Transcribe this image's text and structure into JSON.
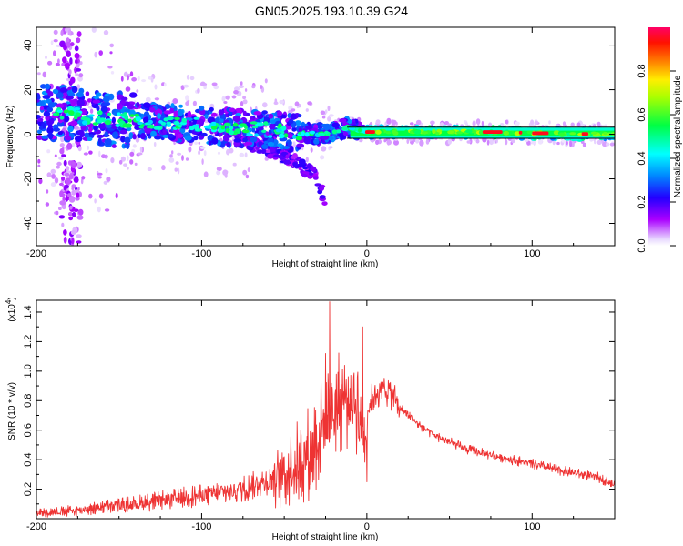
{
  "figure_title": "GN05.2025.193.10.39.G24",
  "colorbar": {
    "label": "Normalized spectral amplitude",
    "ticks": [
      0.0,
      0.2,
      0.4,
      0.6,
      0.8
    ],
    "tick_labels": [
      "0.0",
      "0.2",
      "0.4",
      "0.6",
      "0.8"
    ],
    "range": [
      0,
      1
    ]
  },
  "chart_data": [
    {
      "type": "heatmap",
      "xlabel": "Height of straight line (km)",
      "ylabel": "Frequency (Hz)",
      "xlim": [
        -200,
        150
      ],
      "ylim": [
        -50,
        48
      ],
      "x_ticks": [
        -200,
        -100,
        0,
        100
      ],
      "x_tick_labels": [
        "-200",
        "-100",
        "0",
        "100"
      ],
      "y_ticks": [
        -40,
        -20,
        0,
        20,
        40
      ],
      "y_tick_labels": [
        "-40",
        "-20",
        "0",
        "20",
        "40"
      ],
      "ridge": {
        "x": [
          -200,
          -180,
          -160,
          -140,
          -120,
          -100,
          -80,
          -60,
          -45,
          -30,
          -20,
          -12,
          -5,
          0,
          20,
          50,
          80,
          100,
          150
        ],
        "frequency": [
          10,
          9,
          7,
          6,
          5,
          4,
          3,
          2,
          1,
          0,
          1,
          3,
          2,
          1,
          1,
          1,
          1,
          0.5,
          0
        ]
      },
      "lower_tail": {
        "x": [
          -80,
          -65,
          -50,
          -40,
          -30,
          -25
        ],
        "frequency": [
          -2,
          -5,
          -10,
          -14,
          -20,
          -30
        ]
      },
      "colormap": "gist_rainbow_r"
    },
    {
      "type": "line",
      "xlabel": "Height of straight line (km)",
      "ylabel": "SNR (10 * v/v)",
      "y_multiplier": "(x10",
      "y_multiplier_exp": "4",
      "y_multiplier_close": ")",
      "xlim": [
        -200,
        150
      ],
      "ylim": [
        0,
        1.48
      ],
      "x_ticks": [
        -200,
        -100,
        0,
        100
      ],
      "x_tick_labels": [
        "-200",
        "-100",
        "0",
        "100"
      ],
      "y_ticks": [
        0.2,
        0.4,
        0.6,
        0.8,
        1.0,
        1.2,
        1.4
      ],
      "y_tick_labels": [
        "0.2",
        "0.4",
        "0.6",
        "0.8",
        "1.0",
        "1.2",
        "1.4"
      ],
      "color": "#ee3333",
      "series": [
        {
          "x": [
            -200,
            -180,
            -160,
            -140,
            -120,
            -100,
            -80,
            -70,
            -60,
            -50,
            -45,
            -40,
            -35,
            -30,
            -25,
            -22,
            -18,
            -12,
            -8,
            -5,
            -2,
            0,
            5,
            10,
            15,
            20,
            30,
            40,
            50,
            60,
            80,
            100,
            120,
            140,
            150
          ],
          "values": [
            0.04,
            0.05,
            0.08,
            0.1,
            0.13,
            0.16,
            0.19,
            0.22,
            0.26,
            0.3,
            0.35,
            0.4,
            0.45,
            0.55,
            0.68,
            0.72,
            0.78,
            0.8,
            0.8,
            0.75,
            0.55,
            0.72,
            0.85,
            0.88,
            0.85,
            0.75,
            0.65,
            0.57,
            0.52,
            0.47,
            0.42,
            0.37,
            0.32,
            0.28,
            0.23
          ]
        }
      ],
      "peaks": [
        {
          "x": -22.5,
          "value": 1.47
        },
        {
          "x": -2.5,
          "value": 1.3
        },
        {
          "x": -25,
          "value": 1.12
        },
        {
          "x": -14,
          "value": 0.86
        }
      ]
    }
  ]
}
